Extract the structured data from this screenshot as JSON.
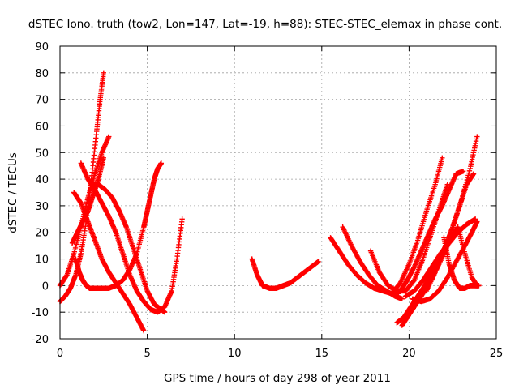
{
  "chart_data": {
    "type": "scatter",
    "title": "dSTEC Iono. truth (tow2, Lon=147, Lat=-19, h=88): STEC-STEC_elemax in phase cont.",
    "xlabel": "GPS time / hours of day 298 of year 2011",
    "ylabel": "dSTEC  / TECUs",
    "xlim": [
      0,
      25
    ],
    "ylim": [
      -20,
      90
    ],
    "x_ticks": [
      0,
      5,
      10,
      15,
      20,
      25
    ],
    "y_ticks": [
      -20,
      -10,
      0,
      10,
      20,
      30,
      40,
      50,
      60,
      70,
      80,
      90
    ],
    "x_tick_labels": [
      "0",
      "5",
      "10",
      "15",
      "20",
      "25"
    ],
    "y_tick_labels": [
      "-20",
      "-10",
      "0",
      "10",
      "20",
      "30",
      "40",
      "50",
      "60",
      "70",
      "80",
      "90"
    ],
    "grid": true,
    "marker": "plus",
    "color": "#ff0000",
    "series": [
      {
        "x": [
          0.0,
          0.3,
          0.6,
          0.9,
          1.2,
          1.5,
          1.8,
          2.1,
          2.3,
          2.5
        ],
        "y": [
          -6,
          -4,
          -1,
          4,
          12,
          24,
          40,
          58,
          70,
          80
        ]
      },
      {
        "x": [
          0.0,
          0.4,
          0.8,
          1.2,
          1.6,
          2.0,
          2.4,
          2.8
        ],
        "y": [
          0,
          4,
          12,
          22,
          33,
          42,
          50,
          56
        ]
      },
      {
        "x": [
          0.7,
          1.0,
          1.3,
          1.6,
          1.9,
          2.2,
          2.5
        ],
        "y": [
          16,
          20,
          24,
          28,
          34,
          40,
          48
        ]
      },
      {
        "x": [
          0.8,
          1.2,
          1.6,
          2.0,
          2.4,
          2.8,
          3.2,
          3.6,
          4.0,
          4.4,
          4.8
        ],
        "y": [
          35,
          31,
          24,
          17,
          10,
          5,
          1,
          -3,
          -7,
          -12,
          -17
        ]
      },
      {
        "x": [
          1.2,
          1.6,
          2.0,
          2.4,
          2.8,
          3.2,
          3.6,
          4.0,
          4.4,
          4.8,
          5.2,
          5.6,
          6.0,
          6.4,
          6.7,
          7.0
        ],
        "y": [
          46,
          40,
          36,
          31,
          26,
          20,
          12,
          4,
          -2,
          -6,
          -9,
          -10,
          -8,
          -2,
          10,
          25
        ]
      },
      {
        "x": [
          0.9,
          1.1,
          1.3,
          1.5,
          1.7,
          1.9,
          2.1,
          2.4,
          2.8,
          3.2,
          3.6,
          4.0,
          4.4,
          4.8,
          5.0,
          5.2,
          5.4,
          5.6,
          5.8
        ],
        "y": [
          10,
          5,
          2,
          0,
          -1,
          -1,
          -1,
          -1,
          -1,
          0,
          2,
          6,
          12,
          22,
          28,
          34,
          40,
          44,
          46
        ]
      },
      {
        "x": [
          1.8,
          2.2,
          2.6,
          3.0,
          3.4,
          3.8,
          4.2,
          4.6,
          5.0,
          5.4,
          5.8,
          6.0
        ],
        "y": [
          38,
          38,
          36,
          33,
          28,
          22,
          14,
          6,
          -2,
          -7,
          -9,
          -10
        ]
      },
      {
        "x": [
          11.0,
          11.3,
          11.6,
          12.0,
          12.4,
          12.8,
          13.2,
          13.6,
          14.0,
          14.4,
          14.8
        ],
        "y": [
          10,
          4,
          0,
          -1,
          -1,
          0,
          1,
          3,
          5,
          7,
          9
        ]
      },
      {
        "x": [
          15.5,
          16.0,
          16.5,
          17.0,
          17.5,
          18.0,
          18.5,
          19.0,
          19.4
        ],
        "y": [
          18,
          13,
          8,
          4,
          1,
          -1,
          -2,
          -3,
          -3
        ]
      },
      {
        "x": [
          16.2,
          16.7,
          17.2,
          17.7,
          18.2,
          18.7,
          19.2,
          19.6
        ],
        "y": [
          22,
          15,
          9,
          4,
          0,
          -2,
          -4,
          -5
        ]
      },
      {
        "x": [
          17.8,
          18.3,
          18.8,
          19.3,
          19.8,
          20.3,
          20.8,
          21.3,
          21.8,
          22.2
        ],
        "y": [
          13,
          5,
          0,
          -2,
          -2,
          2,
          10,
          20,
          30,
          38
        ]
      },
      {
        "x": [
          19.0,
          19.5,
          20.0,
          20.5,
          21.0,
          21.5,
          21.9
        ],
        "y": [
          -3,
          1,
          8,
          17,
          28,
          38,
          48
        ]
      },
      {
        "x": [
          19.3,
          19.7,
          20.1,
          20.5,
          20.9,
          21.3,
          21.7,
          22.1,
          22.5,
          22.9,
          23.3,
          23.7
        ],
        "y": [
          -14,
          -12,
          -8,
          -4,
          0,
          5,
          10,
          15,
          22,
          30,
          38,
          42
        ]
      },
      {
        "x": [
          19.6,
          20.0,
          20.5,
          21.0,
          21.5,
          22.0,
          22.5,
          23.0,
          23.5,
          23.9
        ],
        "y": [
          -15,
          -11,
          -6,
          -1,
          5,
          13,
          22,
          32,
          44,
          56
        ]
      },
      {
        "x": [
          19.5,
          19.9,
          20.3,
          20.7,
          21.1,
          21.5,
          21.9,
          22.3,
          22.7,
          23.1
        ],
        "y": [
          -2,
          2,
          7,
          13,
          19,
          25,
          30,
          36,
          42,
          43
        ]
      },
      {
        "x": [
          19.8,
          20.3,
          20.8,
          21.3,
          21.8,
          22.3,
          22.8,
          23.3,
          23.8
        ],
        "y": [
          -4,
          -2,
          2,
          7,
          12,
          16,
          20,
          23,
          25
        ]
      },
      {
        "x": [
          20.2,
          20.7,
          21.2,
          21.7,
          22.2,
          22.7,
          23.2,
          23.6,
          23.9
        ],
        "y": [
          -5,
          -6,
          -5,
          -2,
          3,
          9,
          15,
          20,
          24
        ]
      },
      {
        "x": [
          21.0,
          21.5,
          22.0,
          22.4,
          22.8,
          23.2,
          23.6,
          23.9
        ],
        "y": [
          -2,
          5,
          12,
          18,
          22,
          12,
          3,
          0
        ]
      },
      {
        "x": [
          22.0,
          22.3,
          22.6,
          22.9,
          23.2,
          23.5,
          23.8,
          24.0
        ],
        "y": [
          18,
          8,
          2,
          -1,
          -1,
          0,
          0,
          0
        ]
      }
    ]
  }
}
